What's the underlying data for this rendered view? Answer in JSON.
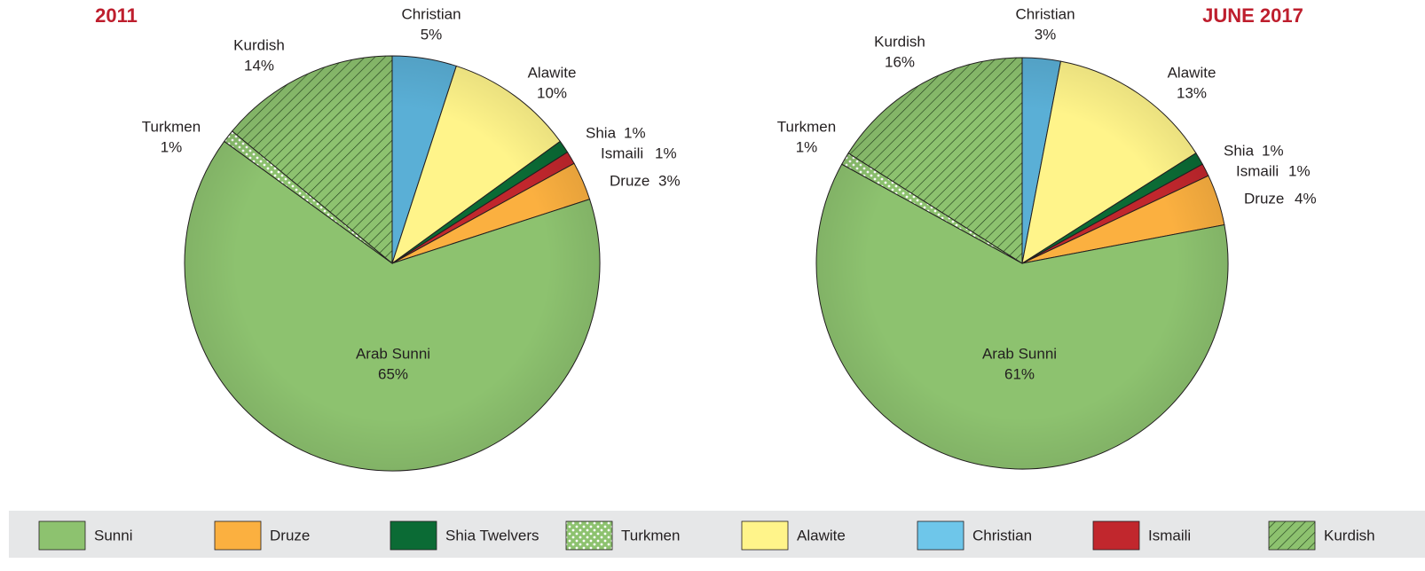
{
  "chart_data": [
    {
      "type": "pie",
      "title": "2011",
      "categories": [
        "Christian",
        "Alawite",
        "Shia",
        "Ismaili",
        "Druze",
        "Arab Sunni",
        "Turkmen",
        "Kurdish"
      ],
      "values": [
        5,
        10,
        1,
        1,
        3,
        65,
        1,
        14
      ],
      "value_labels": [
        "5%",
        "10%",
        "1%",
        "1%",
        "3%",
        "65%",
        "1%",
        "14%"
      ],
      "colors": [
        "#5aafd6",
        "#fff48a",
        "#0b6b35",
        "#c1272d",
        "#fbb040",
        "#8dc26f",
        "#8dc26f",
        "#8dc26f"
      ],
      "patterns": [
        null,
        null,
        null,
        null,
        null,
        null,
        "dots",
        "hatch"
      ]
    },
    {
      "type": "pie",
      "title": "JUNE 2017",
      "categories": [
        "Christian",
        "Alawite",
        "Shia",
        "Ismaili",
        "Druze",
        "Arab Sunni",
        "Turkmen",
        "Kurdish"
      ],
      "values": [
        3,
        13,
        1,
        1,
        4,
        61,
        1,
        16
      ],
      "value_labels": [
        "3%",
        "13%",
        "1%",
        "1%",
        "4%",
        "61%",
        "1%",
        "16%"
      ],
      "colors": [
        "#5aafd6",
        "#fff48a",
        "#0b6b35",
        "#c1272d",
        "#fbb040",
        "#8dc26f",
        "#8dc26f",
        "#8dc26f"
      ],
      "patterns": [
        null,
        null,
        null,
        null,
        null,
        null,
        "dots",
        "hatch"
      ]
    }
  ],
  "legend": [
    {
      "name": "Sunni",
      "color": "#8dc26f",
      "pattern": null
    },
    {
      "name": "Druze",
      "color": "#fbb040",
      "pattern": null
    },
    {
      "name": "Shia Twelvers",
      "color": "#0b6b35",
      "pattern": null
    },
    {
      "name": "Turkmen",
      "color": "#8dc26f",
      "pattern": "dots"
    },
    {
      "name": "Alawite",
      "color": "#fff48a",
      "pattern": null
    },
    {
      "name": "Christian",
      "color": "#6ec6ea",
      "pattern": null
    },
    {
      "name": "Ismaili",
      "color": "#c1272d",
      "pattern": null
    },
    {
      "name": "Kurdish",
      "color": "#8dc26f",
      "pattern": "hatch"
    }
  ]
}
